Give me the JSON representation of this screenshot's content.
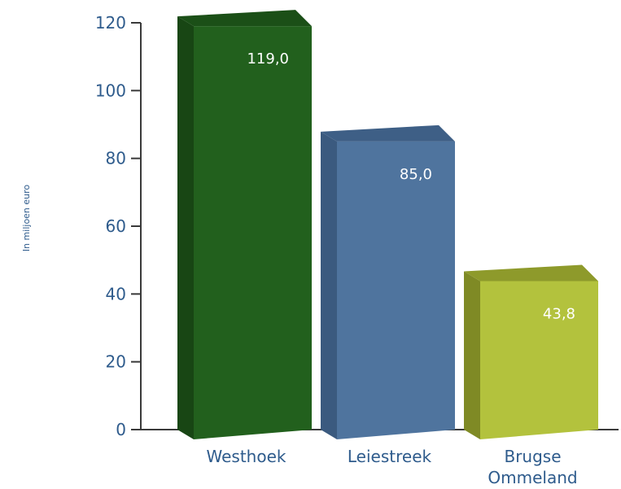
{
  "chart_data": {
    "type": "bar",
    "title": "",
    "xlabel": "",
    "ylabel": "In miljoen euro",
    "ylim": [
      0,
      120
    ],
    "yticks": [
      0,
      20,
      40,
      60,
      80,
      100,
      120
    ],
    "grid": false,
    "categories": [
      {
        "lines": [
          "Westhoek"
        ]
      },
      {
        "lines": [
          "Leiestreek"
        ]
      },
      {
        "lines": [
          "Brugse",
          "Ommeland"
        ]
      }
    ],
    "values": [
      119.0,
      85.0,
      43.8
    ],
    "data_labels": [
      "119,0",
      "85,0",
      "43,8"
    ],
    "colors": [
      {
        "front": "#22601d",
        "top": "#1b4f17",
        "side": "#184614"
      },
      {
        "front": "#4f749e",
        "top": "#3e5f86",
        "side": "#3b5a7f"
      },
      {
        "front": "#b3c23d",
        "top": "#8e9a2b",
        "side": "#7f8a25"
      }
    ],
    "axis_color": "#3a3a3a",
    "text_color": "#2e5b8c"
  }
}
